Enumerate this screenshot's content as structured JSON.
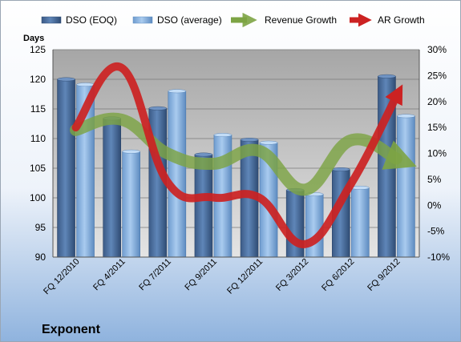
{
  "company": "Exponent",
  "chart_data": {
    "type": "bar",
    "y_left_label": "Days",
    "y_left_range": [
      90,
      125
    ],
    "y_left_ticks": [
      "90",
      "95",
      "100",
      "105",
      "110",
      "115",
      "120",
      "125"
    ],
    "y_right_range": [
      -10,
      30
    ],
    "y_right_ticks": [
      "-10%",
      "-5%",
      "0%",
      "5%",
      "10%",
      "15%",
      "20%",
      "25%",
      "30%"
    ],
    "categories": [
      "FQ 12/2010",
      "FQ 4/2011",
      "FQ 7/2011",
      "FQ 9/2011",
      "FQ 12/2011",
      "FQ 3/2012",
      "FQ 6/2012",
      "FQ 9/2012"
    ],
    "grid": true,
    "legend_position": "top",
    "series": [
      {
        "name": "DSO (EOQ)",
        "type": "bar",
        "axis": "left",
        "color": "#4a6fa0",
        "values": [
          120.0,
          113.4,
          115.1,
          107.3,
          109.8,
          101.3,
          104.8,
          120.5
        ]
      },
      {
        "name": "DSO (average)",
        "type": "bar",
        "axis": "left",
        "color": "#8db6e2",
        "values": [
          119.1,
          107.8,
          118.0,
          110.6,
          109.3,
          100.6,
          101.7,
          113.8
        ]
      },
      {
        "name": "Revenue Growth",
        "type": "line",
        "axis": "right",
        "color": "#7da444",
        "values": [
          14.5,
          16.5,
          10.0,
          8.0,
          10.5,
          3.0,
          12.5,
          9.0
        ]
      },
      {
        "name": "AR Growth",
        "type": "line",
        "axis": "right",
        "color": "#cc2222",
        "values": [
          15.0,
          26.5,
          4.5,
          1.5,
          1.5,
          -7.5,
          4.0,
          21.0
        ]
      }
    ]
  }
}
